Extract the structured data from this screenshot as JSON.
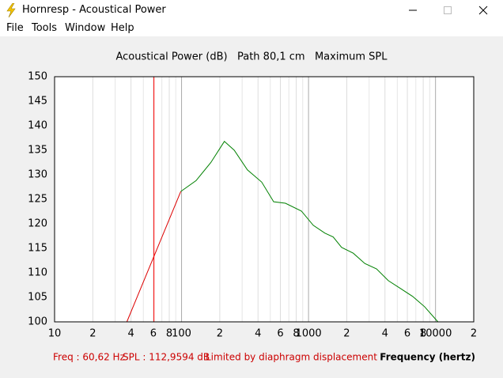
{
  "window": {
    "title": "Hornresp - Acoustical Power"
  },
  "menu": [
    "File",
    "Tools",
    "Window",
    "Help"
  ],
  "status": {
    "freq": "Freq : 60,62 Hz",
    "spl": "SPL : 112,9594 dB",
    "note": "Limited by diaphragm displacement"
  },
  "chart_data": {
    "type": "line",
    "title": "Acoustical Power (dB)   Path 80,1 cm   Maximum SPL",
    "x_label": "Frequency (hertz)",
    "xscale": "log",
    "xlim": [
      10,
      20000
    ],
    "ylim": [
      100,
      150
    ],
    "xticks": [
      10,
      {
        "value": 20,
        "label": "2"
      },
      {
        "value": 40,
        "label": "4"
      },
      {
        "value": 60,
        "label": "6"
      },
      {
        "value": 80,
        "label": "8"
      },
      100,
      {
        "value": 200,
        "label": "2"
      },
      {
        "value": 400,
        "label": "4"
      },
      {
        "value": 600,
        "label": "6"
      },
      {
        "value": 800,
        "label": "8"
      },
      1000,
      {
        "value": 2000,
        "label": "2"
      },
      {
        "value": 4000,
        "label": "4"
      },
      {
        "value": 6000,
        "label": "6"
      },
      {
        "value": 8000,
        "label": "8"
      },
      10000,
      {
        "value": 20000,
        "label": "2"
      }
    ],
    "minor_xticks": [
      30,
      50,
      70,
      90,
      300,
      500,
      700,
      900,
      3000,
      5000,
      7000,
      9000
    ],
    "yticks": [
      100,
      105,
      110,
      115,
      120,
      125,
      130,
      135,
      140,
      145,
      150
    ],
    "grid": "x",
    "cursor": {
      "x": 60.62,
      "color": "#ff0000"
    },
    "series": [
      {
        "color": "#dd0000",
        "x": [
          37.1,
          98.6
        ],
        "values": [
          100,
          126.6
        ]
      },
      {
        "color": "#008000",
        "x": [
          98.6,
          130,
          170,
          217.5,
          260,
          330,
          428,
          531,
          658,
          879,
          1090,
          1345,
          1563,
          1820,
          2250,
          2775,
          3430,
          4250,
          5300,
          6600,
          8200,
          10450
        ],
        "values": [
          126.6,
          128.8,
          132.5,
          136.8,
          135.0,
          131.0,
          128.5,
          124.5,
          124.2,
          122.6,
          119.7,
          118.1,
          117.3,
          115.2,
          114.0,
          111.9,
          110.8,
          108.4,
          106.8,
          105.2,
          103.1,
          100
        ]
      }
    ]
  }
}
